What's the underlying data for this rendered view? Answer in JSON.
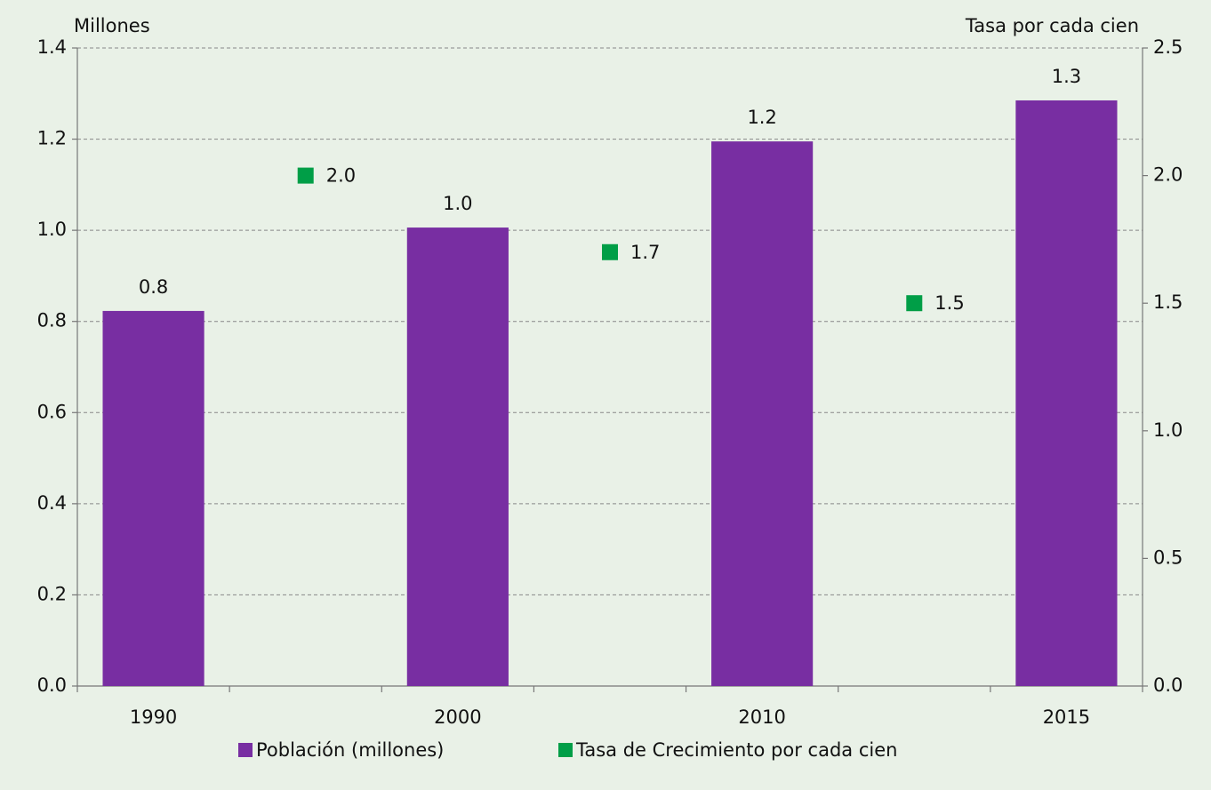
{
  "chart_data": {
    "type": "bar",
    "y_label": "Millones",
    "y2_label": "Tasa por cada cien",
    "categories": [
      "1990",
      null,
      "2000",
      null,
      "2010",
      null,
      "2015"
    ],
    "series": [
      {
        "name": "Población (millones)",
        "type": "bar",
        "color": "#782ea2",
        "values": [
          0.823,
          null,
          1.006,
          null,
          1.195,
          null,
          1.285
        ],
        "value_labels": [
          "0.8",
          null,
          "1.0",
          null,
          "1.2",
          null,
          "1.3"
        ]
      },
      {
        "name": "Tasa de Crecimiento por cada cien",
        "type": "scatter",
        "axis": "y2",
        "color": "#009e47",
        "values": [
          null,
          2.0,
          null,
          1.7,
          null,
          1.5,
          null
        ],
        "value_labels": [
          null,
          "2.0",
          null,
          "1.7",
          null,
          "1.5",
          null
        ]
      }
    ],
    "ylim": [
      0,
      1.4
    ],
    "yticks": [
      {
        "value": 0,
        "label": "0.0"
      },
      0.2,
      0.4,
      0.6,
      0.8,
      {
        "value": 1,
        "label": "1.0"
      },
      1.2,
      1.4
    ],
    "y2lim": [
      0,
      2.5
    ],
    "y2ticks": [
      {
        "value": 0,
        "label": "0.0"
      },
      0.5,
      {
        "value": 1,
        "label": "1.0"
      },
      1.5,
      {
        "value": 2,
        "label": "2.0"
      },
      2.5
    ],
    "grid": true
  }
}
